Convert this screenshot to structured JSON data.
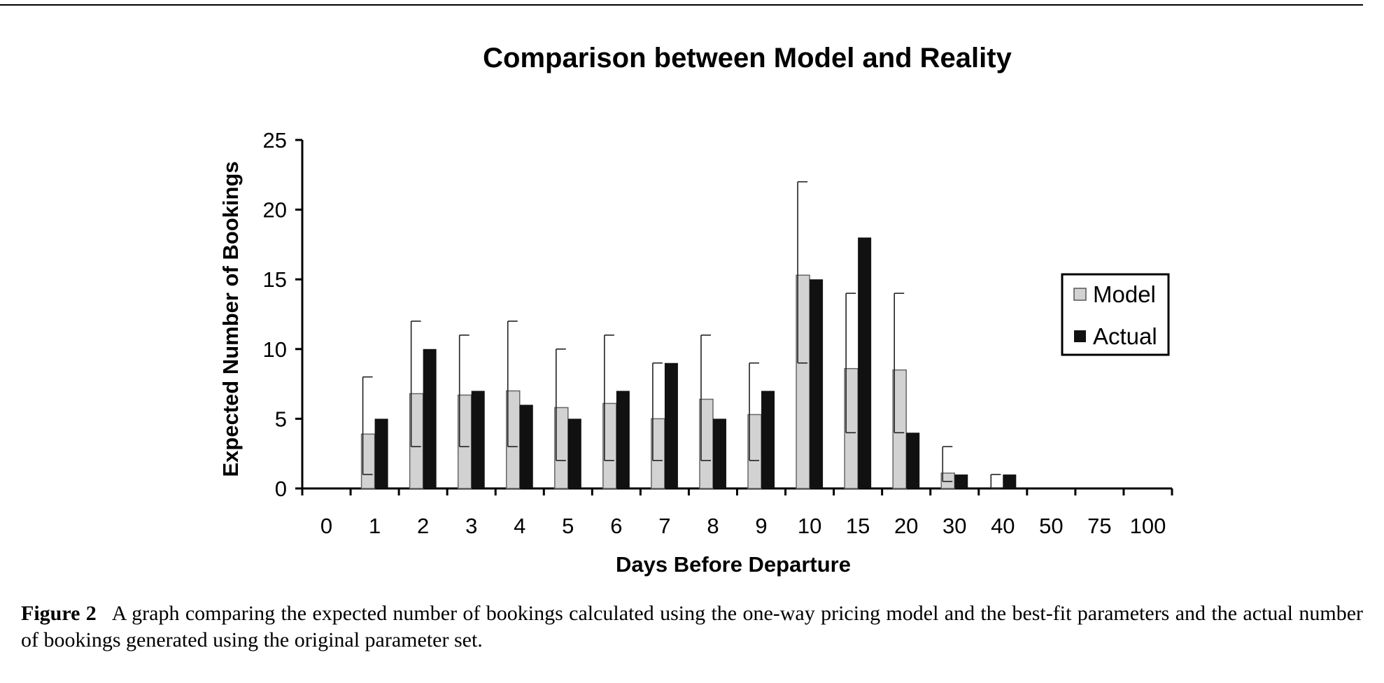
{
  "caption": {
    "label": "Figure 2",
    "text": "A graph comparing the expected number of bookings calculated using the one-way pricing model and the best-fit parameters and the actual number of bookings generated using the original parameter set."
  },
  "chart_data": {
    "type": "bar",
    "title": "Comparison between Model and Reality",
    "xlabel": "Days Before Departure",
    "ylabel": "Expected Number of Bookings",
    "ylim": [
      0,
      25
    ],
    "yticks": [
      0,
      5,
      10,
      15,
      20,
      25
    ],
    "categories": [
      "0",
      "1",
      "2",
      "3",
      "4",
      "5",
      "6",
      "7",
      "8",
      "9",
      "10",
      "15",
      "20",
      "30",
      "40",
      "50",
      "75",
      "100"
    ],
    "series": [
      {
        "name": "Model",
        "color": "#d2d2d2",
        "values": [
          0,
          3.9,
          6.8,
          6.7,
          7.0,
          5.8,
          6.1,
          5.0,
          6.4,
          5.3,
          15.3,
          8.6,
          8.5,
          1.1,
          0,
          0,
          0,
          0
        ],
        "error_low": [
          null,
          1,
          3,
          3,
          3,
          2,
          2,
          2,
          2,
          2,
          9,
          4,
          4,
          0.5,
          0,
          null,
          null,
          null
        ],
        "error_high": [
          null,
          8,
          12,
          11,
          12,
          10,
          11,
          9,
          11,
          9,
          22,
          14,
          14,
          3,
          1,
          null,
          null,
          null
        ]
      },
      {
        "name": "Actual",
        "color": "#111111",
        "values": [
          0,
          5,
          10,
          7,
          6,
          5,
          7,
          9,
          5,
          7,
          15,
          18,
          4,
          1,
          1,
          0,
          0,
          0
        ]
      }
    ],
    "legend": "right"
  }
}
